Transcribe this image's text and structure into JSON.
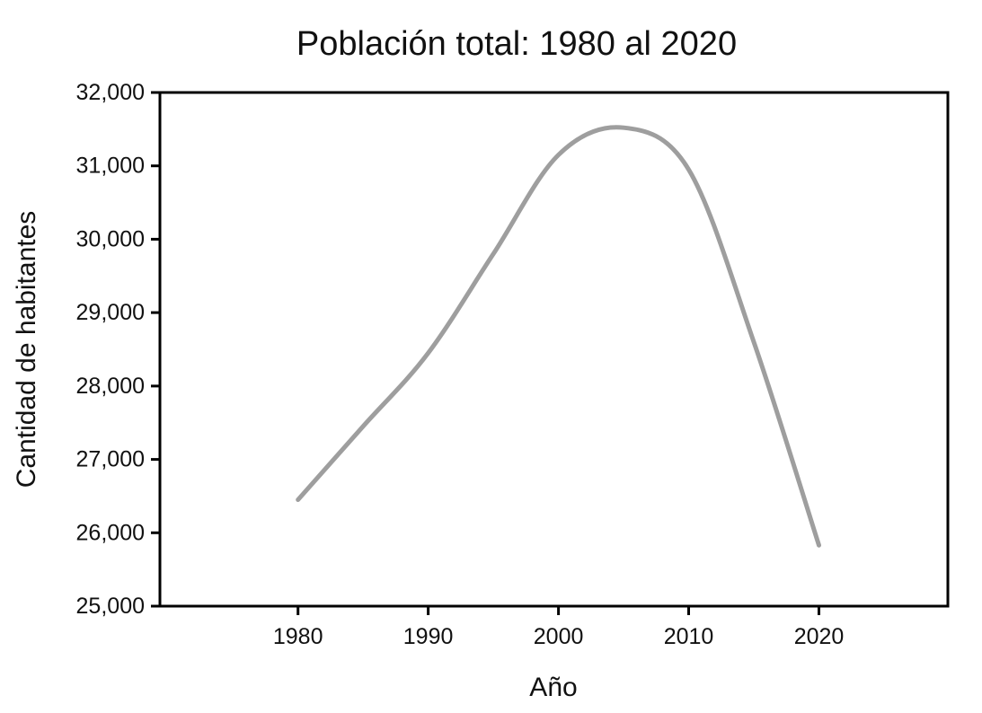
{
  "background": "#ffffff",
  "chart_data": {
    "type": "line",
    "title": "Población total: 1980 al 2020",
    "xlabel": "Año",
    "ylabel": "Cantidad de habitantes",
    "x": [
      1980,
      1985,
      1990,
      1995,
      2000,
      2005,
      2010,
      2015,
      2020
    ],
    "series": [
      {
        "name": "Población total",
        "values": [
          26450,
          27450,
          28450,
          29800,
          31150,
          31520,
          30950,
          28600,
          25830
        ]
      }
    ],
    "xlim": [
      1969.4,
      2029.9
    ],
    "ylim": [
      25000,
      32000
    ],
    "xticks": [
      1980,
      1990,
      2000,
      2010,
      2020
    ],
    "xtick_labels": [
      "1980",
      "1990",
      "2000",
      "2010",
      "2020"
    ],
    "yticks": [
      25000,
      26000,
      27000,
      28000,
      29000,
      30000,
      31000,
      32000
    ],
    "ytick_labels": [
      "25,000",
      "26,000",
      "27,000",
      "28,000",
      "29,000",
      "30,000",
      "31,000",
      "32,000"
    ],
    "grid": false,
    "legend": "none",
    "smooth": true,
    "line_color": "#9e9e9e",
    "line_width": 5,
    "frame_color": "#000000",
    "tick_color": "#000000",
    "text_color": "#111111"
  }
}
